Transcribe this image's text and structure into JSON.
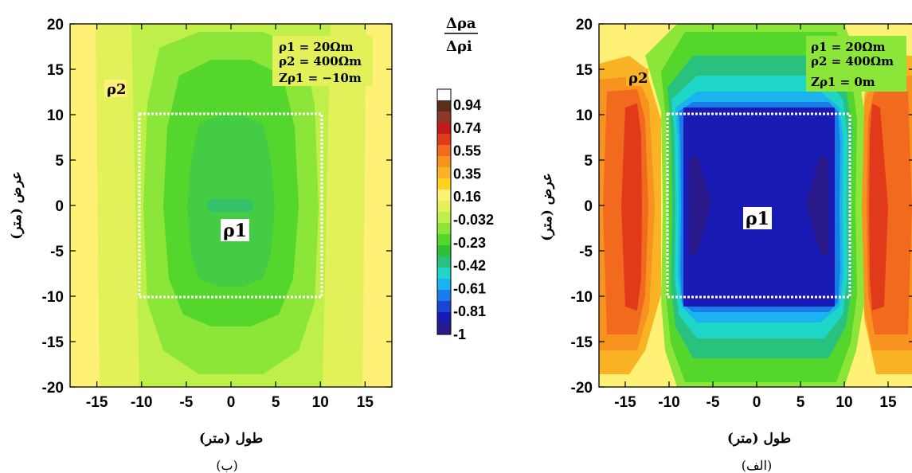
{
  "colorbar": {
    "title_numerator": "Δρa",
    "title_denominator": "Δρi",
    "ticks": [
      "0.94",
      "0.74",
      "0.55",
      "0.35",
      "0.16",
      "-0.032",
      "-0.23",
      "-0.42",
      "-0.61",
      "-0.81",
      "-1"
    ],
    "colors": [
      "#ffffff",
      "#5a2d1e",
      "#8b3a2a",
      "#c01a1a",
      "#e03a1a",
      "#f26a1e",
      "#f7931e",
      "#fbb326",
      "#ffd21e",
      "#fff176",
      "#e2f05a",
      "#bff04a",
      "#8ce63a",
      "#55d62c",
      "#2fbf3a",
      "#28c27e",
      "#1ed6c8",
      "#1ab3f0",
      "#1a7ce8",
      "#1a44d8",
      "#1a1ab5",
      "#2a1a8c"
    ]
  },
  "chart_data": [
    {
      "type": "heatmap",
      "panel": "left",
      "caption": "(ب)",
      "xlabel": "طول (متر)",
      "ylabel": "عرض (متر)",
      "xlim": [
        -18,
        18
      ],
      "ylim": [
        -20,
        20
      ],
      "xticks": [
        "-15",
        "-10",
        "-5",
        "0",
        "5",
        "10",
        "15"
      ],
      "yticks": [
        "20",
        "15",
        "10",
        "5",
        "0",
        "-5",
        "-10",
        "-15",
        "-20"
      ],
      "params": [
        "ρ1 = 20Ωm",
        "ρ2 = 400Ωm",
        "Zρ1 = −10m"
      ],
      "body_label": "ρ1",
      "host_label": "ρ2",
      "anomaly_box": {
        "x": [
          -10,
          10
        ],
        "y": [
          -10,
          10
        ]
      },
      "contour_zones": [
        {
          "value": -0.032,
          "color": "#fff176",
          "rx": 18,
          "ry": 20
        },
        {
          "value": -0.13,
          "color": "#e2f05a",
          "rx": 15,
          "ry": 20
        },
        {
          "value": -0.23,
          "color": "#bff04a",
          "rx": 11,
          "ry": 20
        },
        {
          "value": -0.33,
          "color": "#8ce63a",
          "rx": 8.5,
          "ry": 17
        },
        {
          "value": -0.42,
          "color": "#55d62c",
          "rx": 6.5,
          "ry": 13
        },
        {
          "value": -0.47,
          "color": "#44cc44",
          "rx": 4.5,
          "ry": 9
        },
        {
          "value": -0.52,
          "color": "#33c26a",
          "rx": 2.5,
          "ry": 0.6
        }
      ]
    },
    {
      "type": "heatmap",
      "panel": "right",
      "caption": "(الف)",
      "xlabel": "طول (متر)",
      "ylabel": "عرض (متر)",
      "xlim": [
        -18,
        18
      ],
      "ylim": [
        -20,
        20
      ],
      "xticks": [
        "-15",
        "-10",
        "-5",
        "0",
        "5",
        "10",
        "15"
      ],
      "yticks": [
        "20",
        "15",
        "10",
        "5",
        "0",
        "-5",
        "-10",
        "-15",
        "-20"
      ],
      "params": [
        "ρ1 = 20Ωm",
        "ρ2 = 400Ωm",
        "Zρ1 = 0m"
      ],
      "body_label": "ρ1",
      "host_label": "ρ2",
      "anomaly_box": {
        "x": [
          -10,
          10
        ],
        "y": [
          -10,
          10
        ]
      },
      "contour_zones": [
        {
          "value": 0.55,
          "color": "#e03a1a",
          "x": [
            -14,
            -12
          ],
          "y": [
            -10,
            10
          ]
        },
        {
          "value": 0.35,
          "color": "#f26a1e",
          "x": [
            -16,
            -11
          ],
          "y": [
            -13,
            13
          ]
        },
        {
          "value": -1,
          "color": "#2a1a8c",
          "x": [
            -8,
            8
          ],
          "y": [
            -10,
            10
          ]
        },
        {
          "value": -0.81,
          "color": "#1a1ab5",
          "x": [
            -9,
            9
          ],
          "y": [
            -10,
            10
          ]
        }
      ]
    }
  ]
}
